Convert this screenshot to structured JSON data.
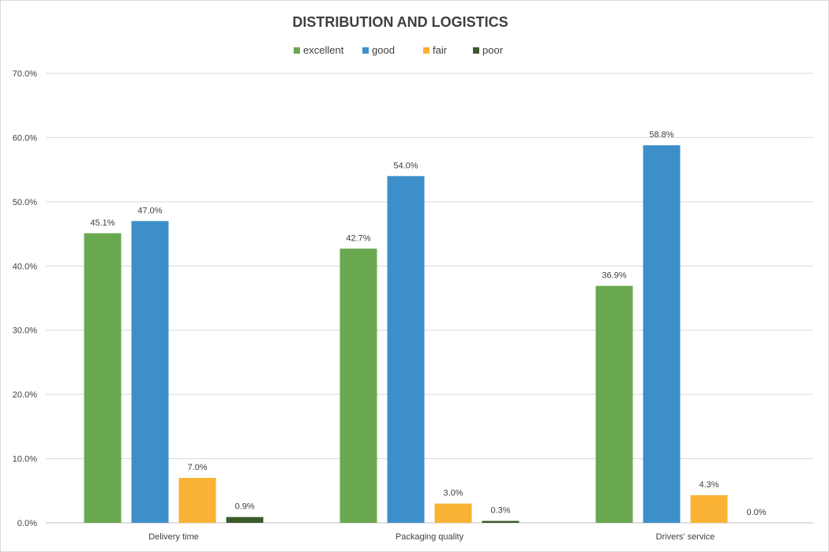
{
  "chart_data": {
    "type": "bar",
    "title": "DISTRIBUTION AND LOGISTICS",
    "categories": [
      "Delivery time",
      "Packaging quality",
      "Drivers' service"
    ],
    "series": [
      {
        "name": "excellent",
        "color": "#6aa84f",
        "values": [
          45.1,
          42.7,
          36.9
        ],
        "labels": [
          "45.1%",
          "42.7%",
          "36.9%"
        ]
      },
      {
        "name": "good",
        "color": "#3d8fc9",
        "values": [
          47.0,
          54.0,
          58.8
        ],
        "labels": [
          "47.0%",
          "54.0%",
          "58.8%"
        ]
      },
      {
        "name": "fair",
        "color": "#f9b233",
        "values": [
          7.0,
          3.0,
          4.3
        ],
        "labels": [
          "7.0%",
          "3.0%",
          "4.3%"
        ]
      },
      {
        "name": "poor",
        "color": "#3c5a2a",
        "values": [
          0.9,
          0.3,
          0.0
        ],
        "labels": [
          "0.9%",
          "0.3%",
          "0.0%"
        ]
      }
    ],
    "ylim": [
      0,
      70
    ],
    "yticks": [
      0,
      10,
      20,
      30,
      40,
      50,
      60,
      70
    ],
    "ytick_labels": [
      "0.0%",
      "10.0%",
      "20.0%",
      "30.0%",
      "40.0%",
      "50.0%",
      "60.0%",
      "70.0%"
    ],
    "xlabel": "",
    "ylabel": "",
    "grid": true,
    "legend_position": "top-center"
  }
}
